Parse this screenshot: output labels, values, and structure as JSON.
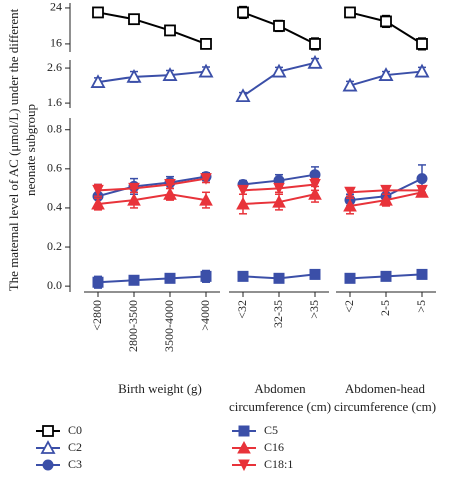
{
  "chart_data": {
    "type": "line",
    "y_label": "The maternal level of AC (μmol/L) under the different neonate subgroup",
    "groups": [
      {
        "label": "Birth weight (g)",
        "categories": [
          "<2800",
          "2800-3500",
          "3500-4000",
          ">4000"
        ]
      },
      {
        "label": "Abdomen circumference (cm)",
        "categories": [
          "<32",
          "32-35",
          ">35"
        ]
      },
      {
        "label": "Abdomen-head circumference (cm)",
        "categories": [
          "<2",
          "2-5",
          ">5"
        ]
      }
    ],
    "axes": [
      {
        "ylim": [
          14.2,
          25.1
        ],
        "yticks": [
          16,
          24
        ]
      },
      {
        "ylim": [
          1.46,
          2.83
        ],
        "yticks": [
          1.6,
          2.6
        ]
      },
      {
        "ylim": [
          -0.03,
          0.86
        ],
        "yticks": [
          {
            "value": 0,
            "label": "0.0"
          },
          0.2,
          0.4,
          0.6,
          0.8
        ]
      }
    ],
    "series": [
      {
        "name": "C0",
        "color": "#000000",
        "marker": "square-open",
        "axis": 0,
        "values": [
          [
            23,
            21.5,
            19,
            16
          ],
          [
            23,
            20,
            16
          ],
          [
            23,
            21,
            16
          ]
        ],
        "errors": [
          [
            1,
            0.6,
            0.6,
            0.6
          ],
          [
            1.3,
            1.2,
            1.3
          ],
          [
            0.5,
            1.3,
            1.3
          ]
        ]
      },
      {
        "name": "C2",
        "color": "#3b4fa8",
        "marker": "triangle-open",
        "axis": 1,
        "values": [
          [
            2.2,
            2.35,
            2.4,
            2.5
          ],
          [
            1.8,
            2.5,
            2.75
          ],
          [
            2.1,
            2.4,
            2.5
          ]
        ],
        "errors": [
          [
            0.12,
            0.15,
            0.13,
            0.13
          ],
          [
            0.1,
            0.12,
            0.12
          ],
          [
            0.12,
            0.1,
            0.12
          ]
        ]
      },
      {
        "name": "C3",
        "color": "#3b4fa8",
        "marker": "circle",
        "axis": 2,
        "values": [
          [
            0.46,
            0.51,
            0.53,
            0.56
          ],
          [
            0.52,
            0.54,
            0.57
          ],
          [
            0.44,
            0.46,
            0.55
          ]
        ],
        "errors": [
          [
            0.06,
            0.04,
            0.03,
            0.02
          ],
          [
            0.02,
            0.03,
            0.04
          ],
          [
            0.03,
            0.03,
            0.07
          ]
        ]
      },
      {
        "name": "C5",
        "color": "#3b4fa8",
        "marker": "square",
        "axis": 2,
        "values": [
          [
            0.02,
            0.03,
            0.04,
            0.05
          ],
          [
            0.05,
            0.04,
            0.06
          ],
          [
            0.04,
            0.05,
            0.06
          ]
        ],
        "errors": [
          [
            0.03,
            0.02,
            0.02,
            0.03
          ],
          [
            0.02,
            0.02,
            0.02
          ],
          [
            0.02,
            0.02,
            0.02
          ]
        ]
      },
      {
        "name": "C16",
        "color": "#e8333a",
        "marker": "triangle",
        "axis": 2,
        "values": [
          [
            0.42,
            0.44,
            0.47,
            0.44
          ],
          [
            0.42,
            0.43,
            0.47
          ],
          [
            0.41,
            0.44,
            0.48
          ]
        ],
        "errors": [
          [
            0.03,
            0.04,
            0.03,
            0.04
          ],
          [
            0.05,
            0.04,
            0.04
          ],
          [
            0.04,
            0.03,
            0.02
          ]
        ]
      },
      {
        "name": "C18:1",
        "color": "#e8333a",
        "marker": "triangle-down",
        "axis": 2,
        "values": [
          [
            0.49,
            0.5,
            0.52,
            0.55
          ],
          [
            0.49,
            0.5,
            0.52
          ],
          [
            0.48,
            0.49,
            0.49
          ]
        ],
        "errors": [
          [
            0.03,
            0.02,
            0.02,
            0.02
          ],
          [
            0.02,
            0.02,
            0.03
          ],
          [
            0.02,
            0.02,
            0.02
          ]
        ]
      }
    ]
  }
}
